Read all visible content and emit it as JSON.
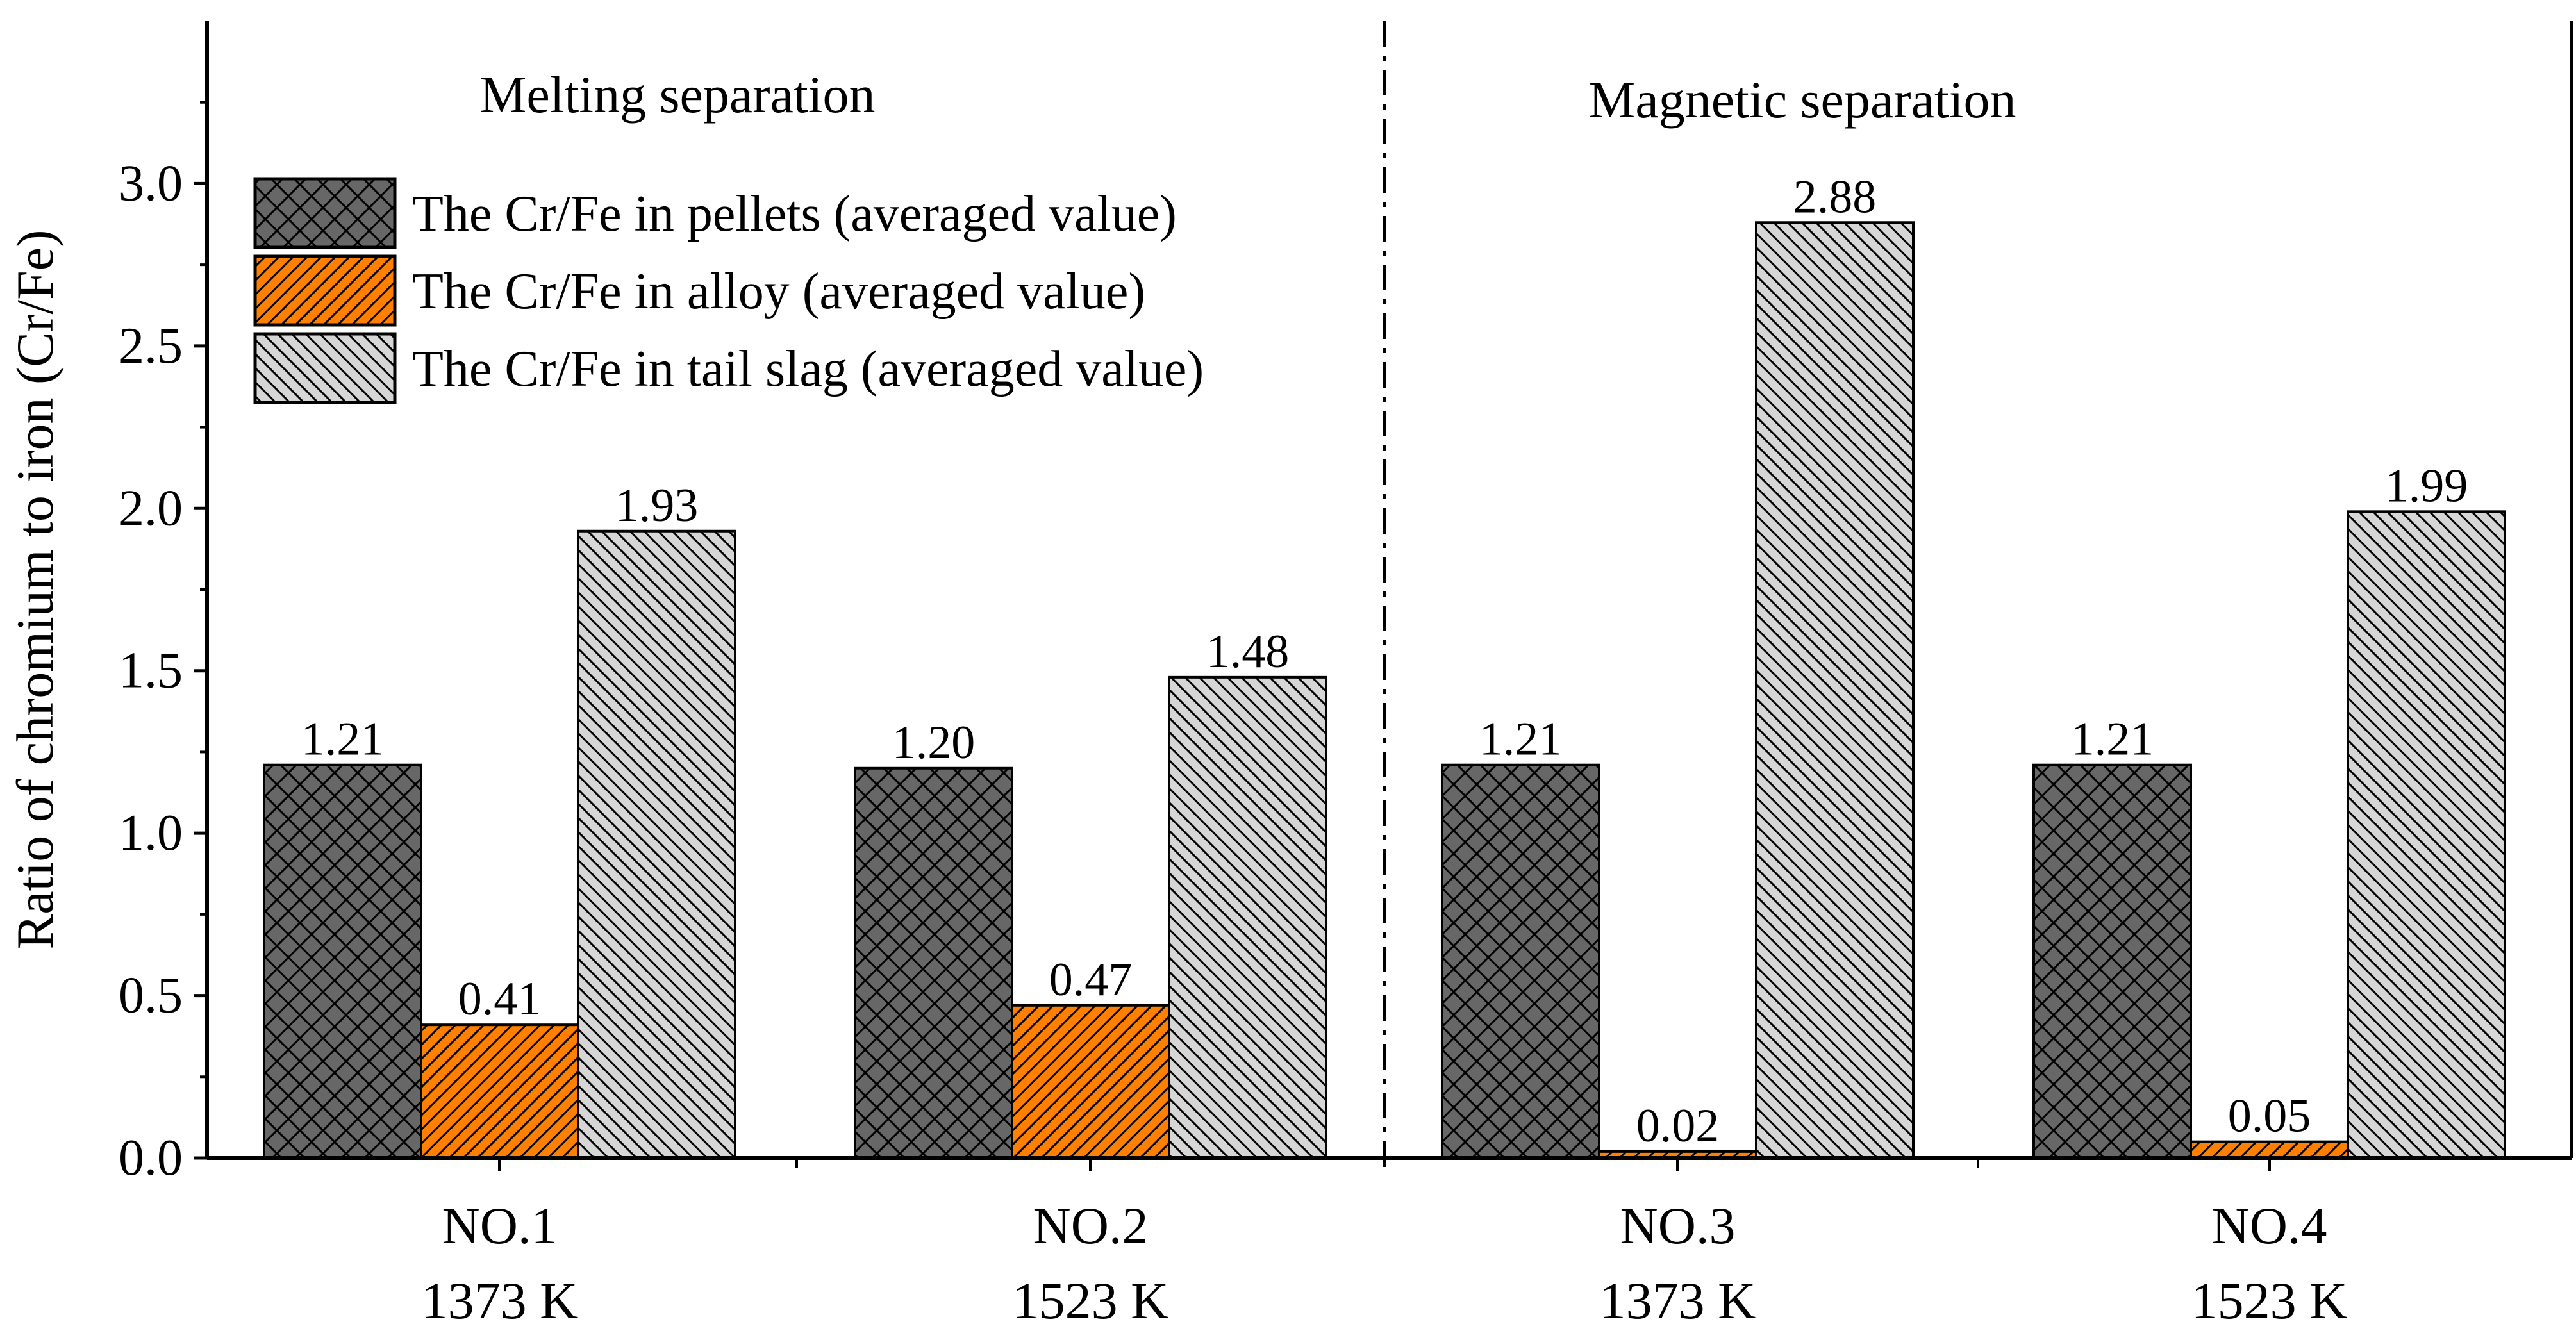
{
  "chart_data": {
    "type": "bar",
    "ylabel": "Ratio of chromium to iron (Cr/Fe)",
    "ylim": [
      0,
      3.5
    ],
    "yticks": [
      0.0,
      0.5,
      1.0,
      1.5,
      2.0,
      2.5,
      3.0
    ],
    "ytick_labels": [
      "0.0",
      "0.5",
      "1.0",
      "1.5",
      "2.0",
      "2.5",
      "3.0"
    ],
    "categories": [
      {
        "name": "NO.1",
        "temp": "1373 K"
      },
      {
        "name": "NO.2",
        "temp": "1523 K"
      },
      {
        "name": "NO.3",
        "temp": "1373 K"
      },
      {
        "name": "NO.4",
        "temp": "1523 K"
      }
    ],
    "series": [
      {
        "name": "The Cr/Fe in pellets (averaged value)",
        "color": "#676767",
        "pattern": "crosshatch",
        "values": [
          1.21,
          1.2,
          1.21,
          1.21
        ],
        "labels": [
          "1.21",
          "1.20",
          "1.21",
          "1.21"
        ]
      },
      {
        "name": "The Cr/Fe in alloy (averaged value)",
        "color": "#ff8000",
        "pattern": "forward-diagonal",
        "values": [
          0.41,
          0.47,
          0.02,
          0.05
        ],
        "labels": [
          "0.41",
          "0.47",
          "0.02",
          "0.05"
        ]
      },
      {
        "name": "The Cr/Fe in tail slag (averaged value)",
        "color": "#d6d6d6",
        "pattern": "back-diagonal",
        "values": [
          1.93,
          1.48,
          2.88,
          1.99
        ],
        "labels": [
          "1.93",
          "1.48",
          "2.88",
          "1.99"
        ]
      }
    ],
    "annotations": [
      "Melting separation",
      "Magnetic separation"
    ],
    "legend": "top-left",
    "grid": false
  }
}
